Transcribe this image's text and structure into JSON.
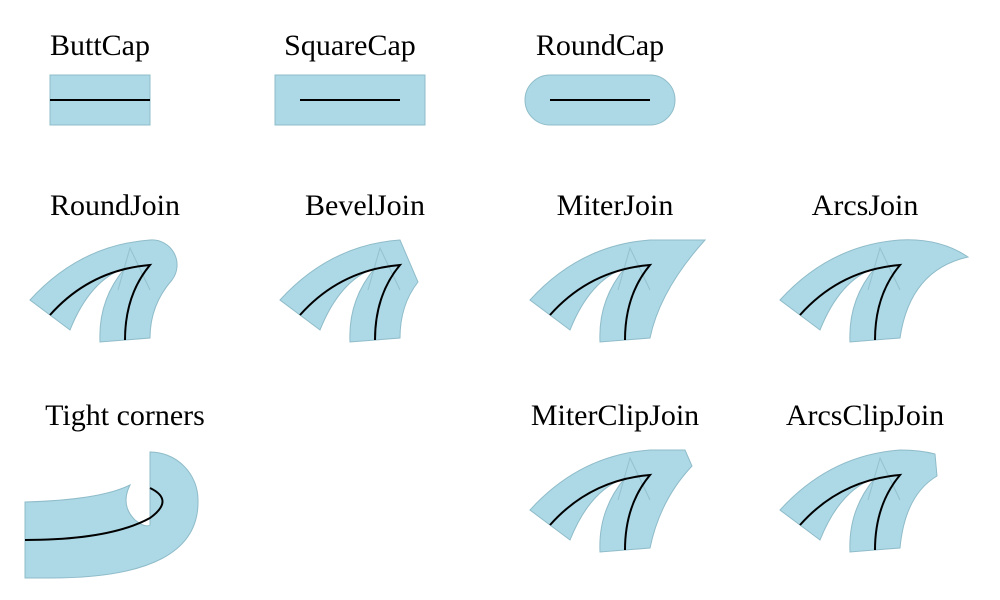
{
  "labels": {
    "butt_cap": "ButtCap",
    "square_cap": "SquareCap",
    "round_cap": "RoundCap",
    "round_join": "RoundJoin",
    "bevel_join": "BevelJoin",
    "miter_join": "MiterJoin",
    "arcs_join": "ArcsJoin",
    "tight_corners": "Tight corners",
    "miter_clip_join": "MiterClipJoin",
    "arcs_clip_join": "ArcsClipJoin"
  },
  "colors": {
    "stroke_fill": "#add8e6",
    "stroke_outline": "#8fbcc9",
    "centerline": "#000000"
  }
}
